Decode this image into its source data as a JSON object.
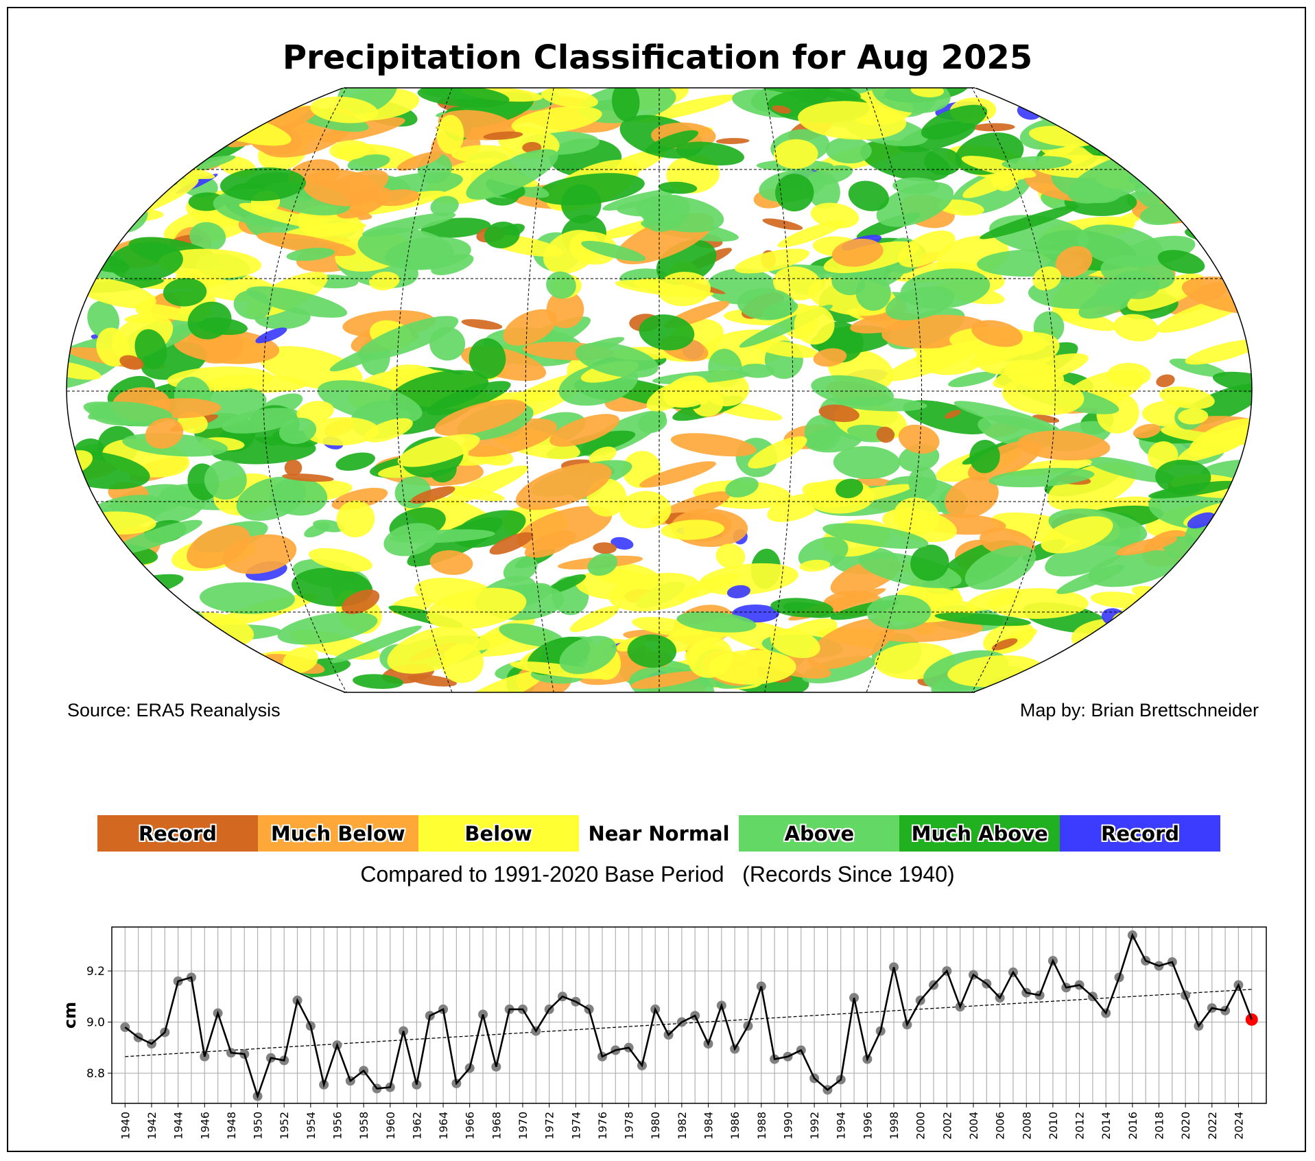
{
  "title": "Precipitation Classification for Aug 2025",
  "source": "Source: ERA5 Reanalysis",
  "credit": "Map by: Brian Brettschneider",
  "legend": [
    {
      "label": "Record",
      "color": "#D36920"
    },
    {
      "label": "Much Below",
      "color": "#FFA83A"
    },
    {
      "label": "Below",
      "color": "#FFFF33"
    },
    {
      "label": "Near Normal",
      "color": "#FFFFFF"
    },
    {
      "label": "Above",
      "color": "#64D864"
    },
    {
      "label": "Much Above",
      "color": "#20B020"
    },
    {
      "label": "Record",
      "color": "#3C3CFF"
    }
  ],
  "caption": "Compared to 1991-2020 Base Period   (Records Since 1940)",
  "chart_data": {
    "type": "line",
    "title": "",
    "xlabel": "",
    "ylabel": "cm",
    "xlim": [
      1939,
      2026.1
    ],
    "ylim": [
      8.682,
      9.372
    ],
    "yticks": [
      8.8,
      9.0,
      9.2
    ],
    "ytick_labels": [
      "8.8",
      "9.0",
      "9.2"
    ],
    "xticks": [
      1940,
      1942,
      1944,
      1946,
      1948,
      1950,
      1952,
      1954,
      1956,
      1958,
      1960,
      1962,
      1964,
      1966,
      1968,
      1970,
      1972,
      1974,
      1976,
      1978,
      1980,
      1982,
      1984,
      1986,
      1988,
      1990,
      1992,
      1994,
      1996,
      1998,
      2000,
      2002,
      2004,
      2006,
      2008,
      2010,
      2012,
      2014,
      2016,
      2018,
      2020,
      2022,
      2024
    ],
    "xtick_labels": [
      "1940",
      "1942",
      "1944",
      "1946",
      "1948",
      "1950",
      "1952",
      "1954",
      "1956",
      "1958",
      "1960",
      "1962",
      "1964",
      "1966",
      "1968",
      "1970",
      "1972",
      "1974",
      "1976",
      "1978",
      "1980",
      "1982",
      "1984",
      "1986",
      "1988",
      "1990",
      "1992",
      "1994",
      "1996",
      "1998",
      "2000",
      "2002",
      "2004",
      "2006",
      "2008",
      "2010",
      "2012",
      "2014",
      "2016",
      "2018",
      "2020",
      "2022",
      "2024"
    ],
    "grid": true,
    "x_start": 1940,
    "values": [
      8.98,
      8.94,
      8.915,
      8.96,
      9.16,
      9.175,
      8.865,
      9.035,
      8.88,
      8.875,
      8.71,
      8.86,
      8.85,
      9.085,
      8.985,
      8.755,
      8.91,
      8.77,
      8.81,
      8.74,
      8.745,
      8.965,
      8.755,
      9.025,
      9.05,
      8.76,
      8.82,
      9.03,
      8.825,
      9.05,
      9.05,
      8.965,
      9.05,
      9.1,
      9.08,
      9.05,
      8.865,
      8.89,
      8.9,
      8.83,
      9.05,
      8.95,
      9.0,
      9.025,
      8.915,
      9.065,
      8.895,
      8.985,
      9.14,
      8.855,
      8.865,
      8.89,
      8.78,
      8.735,
      8.775,
      9.095,
      8.855,
      8.965,
      9.215,
      8.99,
      9.085,
      9.145,
      9.2,
      9.06,
      9.185,
      9.15,
      9.095,
      9.195,
      9.115,
      9.105,
      9.24,
      9.135,
      9.145,
      9.1,
      9.035,
      9.175,
      9.34,
      9.24,
      9.22,
      9.235,
      9.105,
      8.985,
      9.055,
      9.045,
      9.145,
      9.01
    ],
    "trend": {
      "x": [
        1940,
        2025
      ],
      "y": [
        8.865,
        9.128
      ]
    },
    "highlight": {
      "year": 2025,
      "value": 9.01,
      "color": "#FF0000"
    },
    "point_color": "#808080",
    "line_color": "#000000"
  }
}
